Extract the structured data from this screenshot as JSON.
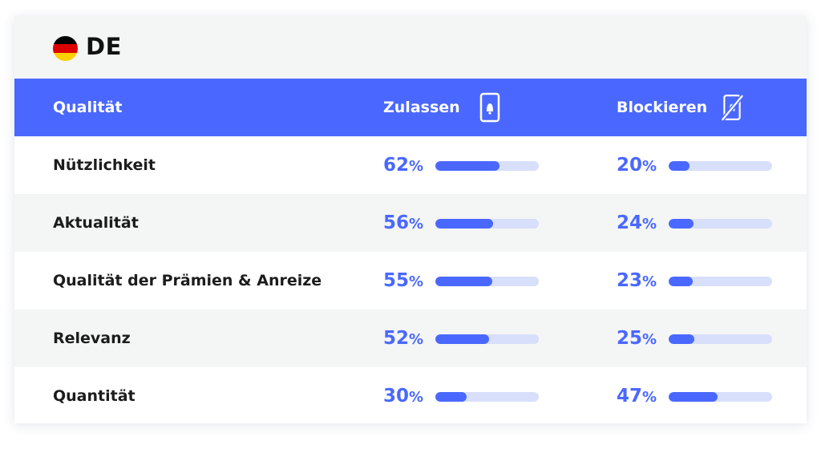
{
  "country": {
    "code": "DE",
    "flag_colors": [
      "#000000",
      "#dd0000",
      "#ffce00"
    ]
  },
  "header": {
    "quality": "Qualität",
    "allow": "Zulassen",
    "block": "Blockieren",
    "allow_icon": "phone-bell-icon",
    "block_icon": "phone-blocked-icon"
  },
  "colors": {
    "accent": "#4a68ff",
    "track": "#d8dffb"
  },
  "percent_sign": "%",
  "rows": [
    {
      "label": "Nützlichkeit",
      "allow": 62,
      "block": 20
    },
    {
      "label": "Aktualität",
      "allow": 56,
      "block": 24
    },
    {
      "label": "Qualität der Prämien & Anreize",
      "allow": 55,
      "block": 23
    },
    {
      "label": "Relevanz",
      "allow": 52,
      "block": 25
    },
    {
      "label": "Quantität",
      "allow": 30,
      "block": 47
    }
  ]
}
